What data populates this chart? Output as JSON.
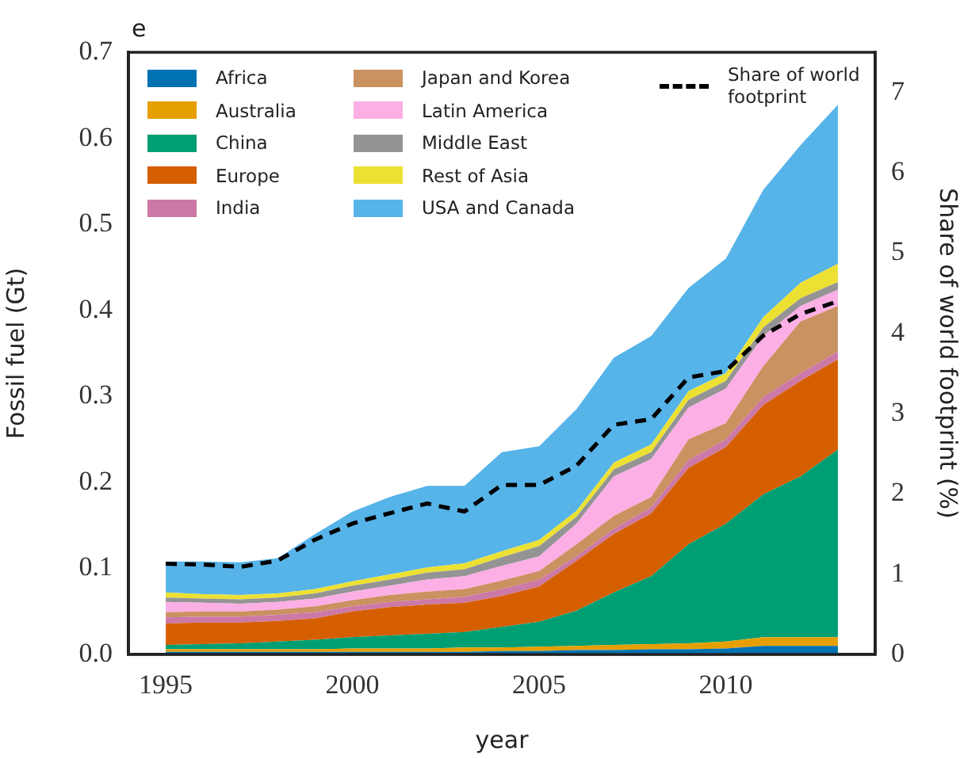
{
  "chart_data": {
    "type": "area",
    "title": "e",
    "xlabel": "year",
    "ylabel": "Fossil fuel (Gt)",
    "y2label": "Share of world footprint (%)",
    "stacked": true,
    "legend": "top",
    "grid": false,
    "x": [
      1995,
      1996,
      1997,
      1998,
      1999,
      2000,
      2001,
      2002,
      2003,
      2004,
      2005,
      2006,
      2007,
      2008,
      2009,
      2010,
      2011,
      2012,
      2013
    ],
    "xlim": [
      1994,
      2014
    ],
    "xticks": [
      1995,
      2000,
      2005,
      2010
    ],
    "ylim": [
      0,
      0.7
    ],
    "yticks": [
      {
        "value": 0,
        "label": "0.0"
      },
      0.1,
      0.2,
      0.3,
      0.4,
      0.5,
      0.6,
      0.7
    ],
    "y2lim": [
      0,
      7.5
    ],
    "y2ticks": [
      0,
      1,
      2,
      3,
      4,
      5,
      6,
      7
    ],
    "series": [
      {
        "name": "Africa",
        "color": "#0072b2",
        "values": [
          0.003,
          0.003,
          0.003,
          0.003,
          0.003,
          0.003,
          0.003,
          0.003,
          0.003,
          0.004,
          0.004,
          0.005,
          0.005,
          0.006,
          0.006,
          0.007,
          0.01,
          0.01,
          0.01
        ]
      },
      {
        "name": "Australia",
        "color": "#e69f00",
        "values": [
          0.003,
          0.003,
          0.003,
          0.003,
          0.003,
          0.004,
          0.004,
          0.004,
          0.005,
          0.004,
          0.005,
          0.005,
          0.006,
          0.006,
          0.007,
          0.008,
          0.01,
          0.01,
          0.01
        ]
      },
      {
        "name": "China",
        "color": "#009e73",
        "values": [
          0.005,
          0.006,
          0.007,
          0.009,
          0.011,
          0.013,
          0.015,
          0.017,
          0.018,
          0.024,
          0.029,
          0.041,
          0.061,
          0.079,
          0.115,
          0.137,
          0.166,
          0.187,
          0.218
        ]
      },
      {
        "name": "Europe",
        "color": "#d55e00",
        "values": [
          0.025,
          0.025,
          0.024,
          0.024,
          0.025,
          0.03,
          0.033,
          0.034,
          0.034,
          0.036,
          0.041,
          0.058,
          0.068,
          0.073,
          0.089,
          0.089,
          0.104,
          0.111,
          0.105
        ]
      },
      {
        "name": "India",
        "color": "#cc79a7",
        "values": [
          0.007,
          0.007,
          0.007,
          0.007,
          0.007,
          0.006,
          0.006,
          0.006,
          0.007,
          0.008,
          0.008,
          0.005,
          0.006,
          0.007,
          0.009,
          0.009,
          0.009,
          0.009,
          0.009
        ]
      },
      {
        "name": "Japan and Korea",
        "color": "#ca9161",
        "values": [
          0.006,
          0.006,
          0.006,
          0.006,
          0.007,
          0.007,
          0.008,
          0.009,
          0.009,
          0.01,
          0.01,
          0.014,
          0.015,
          0.012,
          0.024,
          0.019,
          0.036,
          0.06,
          0.053
        ]
      },
      {
        "name": "Latin America",
        "color": "#fbafe4",
        "values": [
          0.012,
          0.01,
          0.009,
          0.009,
          0.009,
          0.01,
          0.011,
          0.014,
          0.015,
          0.017,
          0.017,
          0.024,
          0.046,
          0.044,
          0.037,
          0.04,
          0.035,
          0.018,
          0.019
        ]
      },
      {
        "name": "Middle East",
        "color": "#949494",
        "values": [
          0.005,
          0.005,
          0.005,
          0.005,
          0.006,
          0.007,
          0.007,
          0.008,
          0.008,
          0.01,
          0.012,
          0.008,
          0.008,
          0.008,
          0.009,
          0.009,
          0.01,
          0.009,
          0.009
        ]
      },
      {
        "name": "Rest of Asia",
        "color": "#ece133",
        "values": [
          0.006,
          0.005,
          0.005,
          0.005,
          0.005,
          0.005,
          0.006,
          0.006,
          0.007,
          0.007,
          0.007,
          0.007,
          0.008,
          0.009,
          0.01,
          0.009,
          0.012,
          0.018,
          0.021
        ]
      },
      {
        "name": "USA and Canada",
        "color": "#56b4e9",
        "values": [
          0.036,
          0.038,
          0.038,
          0.041,
          0.064,
          0.081,
          0.09,
          0.095,
          0.09,
          0.115,
          0.109,
          0.118,
          0.122,
          0.126,
          0.12,
          0.133,
          0.148,
          0.16,
          0.185
        ]
      },
      {
        "name": "Share of world\nfootprint",
        "type": "line",
        "axis": "y2",
        "color": "#000000",
        "line_style": "dashed",
        "marker": "none",
        "values": [
          1.13,
          1.12,
          1.09,
          1.17,
          1.43,
          1.63,
          1.76,
          1.88,
          1.78,
          2.11,
          2.11,
          2.35,
          2.86,
          2.93,
          3.45,
          3.53,
          3.97,
          4.24,
          4.4
        ]
      }
    ]
  }
}
